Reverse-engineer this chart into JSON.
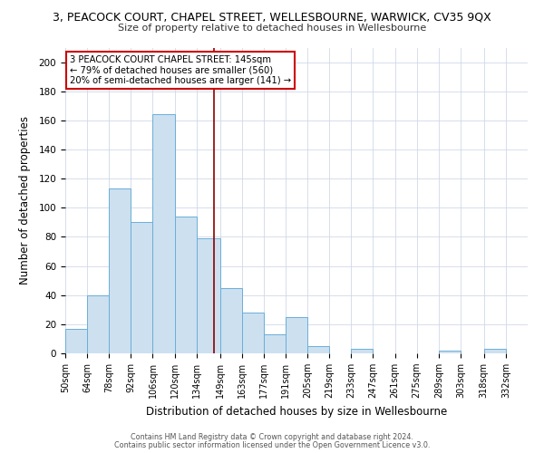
{
  "title": "3, PEACOCK COURT, CHAPEL STREET, WELLESBOURNE, WARWICK, CV35 9QX",
  "subtitle": "Size of property relative to detached houses in Wellesbourne",
  "xlabel": "Distribution of detached houses by size in Wellesbourne",
  "ylabel": "Number of detached properties",
  "bin_labels": [
    "50sqm",
    "64sqm",
    "78sqm",
    "92sqm",
    "106sqm",
    "120sqm",
    "134sqm",
    "149sqm",
    "163sqm",
    "177sqm",
    "191sqm",
    "205sqm",
    "219sqm",
    "233sqm",
    "247sqm",
    "261sqm",
    "275sqm",
    "289sqm",
    "303sqm",
    "318sqm",
    "332sqm"
  ],
  "bin_edges": [
    50,
    64,
    78,
    92,
    106,
    120,
    134,
    149,
    163,
    177,
    191,
    205,
    219,
    233,
    247,
    261,
    275,
    289,
    303,
    318,
    332,
    346
  ],
  "counts": [
    17,
    40,
    113,
    90,
    164,
    94,
    79,
    45,
    28,
    13,
    25,
    5,
    0,
    3,
    0,
    0,
    0,
    2,
    0,
    3,
    0
  ],
  "bar_color": "#cce0f0",
  "bar_edge_color": "#6baed6",
  "property_size": 145,
  "vline_color": "#8b0000",
  "annotation_line1": "3 PEACOCK COURT CHAPEL STREET: 145sqm",
  "annotation_line2": "← 79% of detached houses are smaller (560)",
  "annotation_line3": "20% of semi-detached houses are larger (141) →",
  "annotation_box_color": "#ffffff",
  "annotation_box_edge": "#cc0000",
  "ylim": [
    0,
    210
  ],
  "yticks": [
    0,
    20,
    40,
    60,
    80,
    100,
    120,
    140,
    160,
    180,
    200
  ],
  "footer1": "Contains HM Land Registry data © Crown copyright and database right 2024.",
  "footer2": "Contains public sector information licensed under the Open Government Licence v3.0.",
  "background_color": "#ffffff",
  "grid_color": "#d0d8e8"
}
